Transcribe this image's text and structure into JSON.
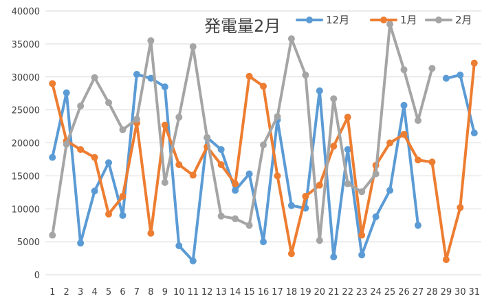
{
  "chart_data": {
    "type": "line",
    "title": "発電量2月",
    "xlabel": "",
    "ylabel": "",
    "x": [
      "1",
      "2",
      "3",
      "4",
      "5",
      "6",
      "7",
      "8",
      "9",
      "10",
      "11",
      "12",
      "13",
      "14",
      "15",
      "16",
      "17",
      "18",
      "19",
      "20",
      "21",
      "22",
      "23",
      "24",
      "25",
      "26",
      "27",
      "28",
      "29",
      "30",
      "31"
    ],
    "y_ticks": [
      "0",
      "5000",
      "10000",
      "15000",
      "20000",
      "25000",
      "30000",
      "35000",
      "40000"
    ],
    "ylim": [
      0,
      40000
    ],
    "grid": true,
    "legend_position": "top-right",
    "series": [
      {
        "name": "12月",
        "color": "#5b9bd5",
        "values": [
          17800,
          27600,
          4800,
          12700,
          17000,
          9000,
          30400,
          29800,
          28500,
          4400,
          2100,
          20800,
          19000,
          12800,
          15300,
          5000,
          23500,
          10500,
          10100,
          27900,
          2700,
          19000,
          3000,
          8800,
          12800,
          25700,
          7500,
          null,
          29800,
          30300,
          21500
        ]
      },
      {
        "name": "1月",
        "color": "#ed7d31",
        "values": [
          29000,
          20300,
          19000,
          17800,
          9200,
          11900,
          23000,
          6300,
          22700,
          16700,
          15100,
          19400,
          16700,
          13800,
          30100,
          28600,
          15000,
          3200,
          11900,
          13600,
          19500,
          23900,
          6000,
          16600,
          20000,
          21300,
          17400,
          17100,
          2300,
          10200,
          32100
        ]
      },
      {
        "name": "2月",
        "color": "#a5a5a5",
        "values": [
          6000,
          19800,
          25600,
          29900,
          26100,
          22000,
          23600,
          35500,
          14000,
          23900,
          34600,
          20800,
          8900,
          8500,
          7500,
          19700,
          24000,
          35800,
          30300,
          5200,
          26700,
          13800,
          12600,
          15300,
          38000,
          31100,
          23400,
          31300,
          null,
          null,
          null
        ]
      }
    ]
  }
}
